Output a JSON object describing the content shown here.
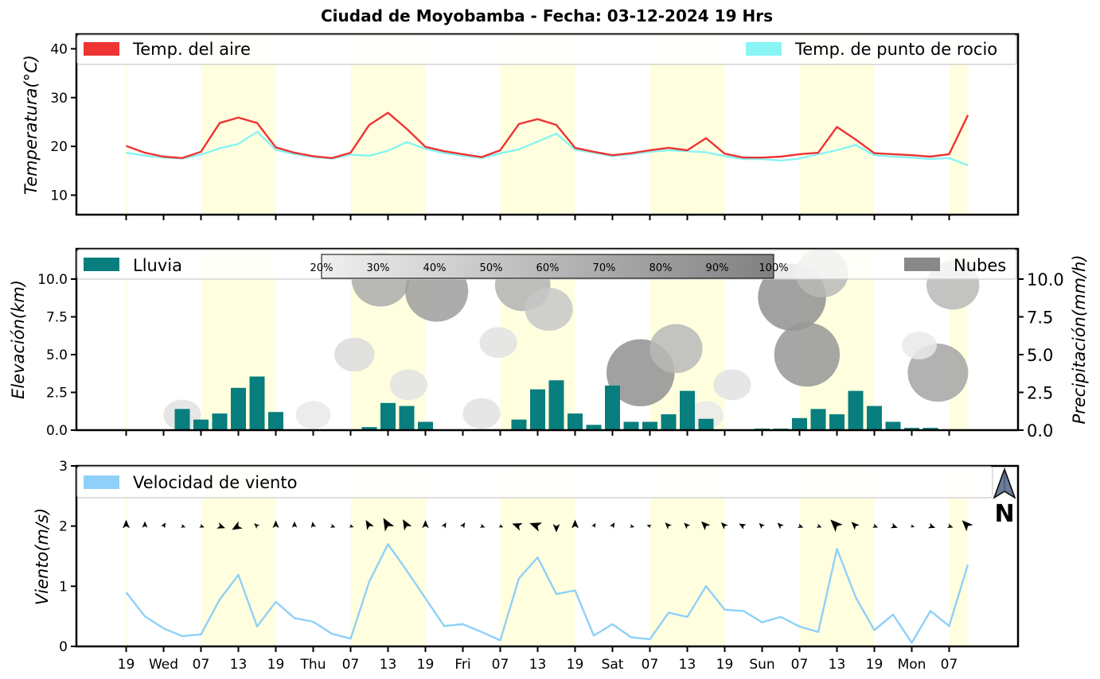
{
  "title": "Ciudad de Moyobamba   -   Fecha: 03-12-2024 19 Hrs",
  "x_ticks": [
    "19",
    "Wed",
    "07",
    "13",
    "19",
    "Thu",
    "07",
    "13",
    "19",
    "Fri",
    "07",
    "13",
    "19",
    "Sat",
    "07",
    "13",
    "19",
    "Sun",
    "07",
    "13",
    "19",
    "Mon",
    "07"
  ],
  "colors": {
    "air": "#ee3333",
    "dew": "#88f4f4",
    "rain": "#087e7e",
    "clouds": "#888888",
    "wind": "#8fd0f8",
    "daylight": "#ffffe0"
  },
  "compass_label": "N",
  "chart_data": [
    {
      "type": "line",
      "ylabel": "Temperatura(°C)",
      "ylim": [
        6,
        43
      ],
      "yticks": [
        "10",
        "20",
        "30",
        "40"
      ],
      "legend": {
        "air": "Temp. del aire",
        "dew": "Temp. de punto de rocio"
      },
      "x": "3-hour steps from Tue 19h (index 0) to Mon 10h (index 45)",
      "series": [
        {
          "name": "Temp. del aire",
          "values": [
            20.1,
            18.7,
            17.9,
            17.6,
            18.9,
            24.8,
            25.9,
            24.8,
            19.8,
            18.7,
            18.0,
            17.6,
            18.7,
            24.4,
            26.9,
            23.6,
            19.9,
            19.0,
            18.4,
            17.8,
            19.2,
            24.6,
            25.6,
            24.4,
            19.7,
            18.9,
            18.2,
            18.6,
            19.2,
            19.7,
            19.2,
            21.7,
            18.5,
            17.7,
            17.7,
            17.9,
            18.4,
            18.7,
            24.0,
            21.4,
            18.6,
            18.4,
            18.2,
            17.9,
            18.4,
            26.4
          ]
        },
        {
          "name": "Temp. de punto de rocio",
          "values": [
            18.7,
            18.1,
            17.7,
            17.5,
            18.3,
            19.6,
            20.5,
            23.0,
            19.3,
            18.4,
            17.8,
            17.5,
            18.3,
            18.1,
            19.1,
            20.9,
            19.5,
            18.6,
            18.1,
            17.6,
            18.6,
            19.4,
            21.0,
            22.6,
            19.3,
            18.7,
            18.0,
            18.4,
            18.9,
            19.2,
            19.0,
            18.8,
            18.0,
            17.4,
            17.4,
            17.1,
            17.5,
            18.4,
            19.2,
            20.3,
            18.2,
            17.9,
            17.7,
            17.4,
            17.6,
            16.1
          ]
        }
      ]
    },
    {
      "type": "bar",
      "ylabel": "Elevación(km)",
      "ylabel_right": "Precipitación(mm/h)",
      "ylim": [
        0,
        12
      ],
      "yticks": [
        "0.0",
        "2.5",
        "5.0",
        "7.5",
        "10.0"
      ],
      "legend": {
        "rain": "Lluvia",
        "clouds": "Nubes"
      },
      "colorbar_labels": [
        "20%",
        "30%",
        "40%",
        "50%",
        "60%",
        "70%",
        "80%",
        "90%",
        "100%"
      ],
      "rain_values": [
        0,
        0,
        0.05,
        1.4,
        0.7,
        1.1,
        2.8,
        3.55,
        1.2,
        0,
        0,
        0,
        0,
        0.2,
        1.8,
        1.6,
        0.55,
        0,
        0,
        0,
        0,
        0.7,
        2.7,
        3.3,
        1.1,
        0.35,
        2.95,
        0.55,
        0.55,
        1.05,
        2.6,
        0.75,
        0.05,
        0,
        0.1,
        0.1,
        0.8,
        1.4,
        1.05,
        2.6,
        1.6,
        0.55,
        0.15,
        0.15,
        0,
        0.05
      ],
      "clouds": [
        {
          "t": 13.6,
          "km": 10.0,
          "coverage": 70
        },
        {
          "t": 16.6,
          "km": 9.2,
          "coverage": 80
        },
        {
          "t": 21.2,
          "km": 9.6,
          "coverage": 65
        },
        {
          "t": 22.6,
          "km": 8.0,
          "coverage": 50
        },
        {
          "t": 27.5,
          "km": 3.8,
          "coverage": 90
        },
        {
          "t": 29.4,
          "km": 5.4,
          "coverage": 60
        },
        {
          "t": 35.6,
          "km": 8.8,
          "coverage": 90
        },
        {
          "t": 36.4,
          "km": 5.0,
          "coverage": 85
        },
        {
          "t": 37.2,
          "km": 10.4,
          "coverage": 60
        },
        {
          "t": 43.4,
          "km": 3.8,
          "coverage": 75
        },
        {
          "t": 44.2,
          "km": 9.6,
          "coverage": 60
        },
        {
          "t": 12.2,
          "km": 5.0,
          "coverage": 35
        },
        {
          "t": 19.9,
          "km": 5.8,
          "coverage": 30
        },
        {
          "t": 15.1,
          "km": 3.0,
          "coverage": 30
        },
        {
          "t": 32.4,
          "km": 3.0,
          "coverage": 30
        },
        {
          "t": 42.4,
          "km": 5.6,
          "coverage": 25
        },
        {
          "t": 3.0,
          "km": 1.0,
          "coverage": 30
        },
        {
          "t": 10.0,
          "km": 1.0,
          "coverage": 25
        },
        {
          "t": 19.0,
          "km": 1.1,
          "coverage": 30
        },
        {
          "t": 31.0,
          "km": 1.0,
          "coverage": 25
        }
      ]
    },
    {
      "type": "line",
      "ylabel": "Viento(m/s)",
      "ylim": [
        0,
        3
      ],
      "yticks": [
        "0",
        "1",
        "2",
        "3"
      ],
      "legend": {
        "wind": "Velocidad de viento"
      },
      "series": [
        {
          "name": "Velocidad de viento",
          "values": [
            0.9,
            0.5,
            0.3,
            0.17,
            0.2,
            0.78,
            1.19,
            0.33,
            0.74,
            0.47,
            0.41,
            0.21,
            0.13,
            1.08,
            1.7,
            1.26,
            0.8,
            0.34,
            0.37,
            0.24,
            0.1,
            1.13,
            1.48,
            0.87,
            0.93,
            0.18,
            0.37,
            0.15,
            0.12,
            0.56,
            0.49,
            1.0,
            0.61,
            0.59,
            0.4,
            0.49,
            0.33,
            0.24,
            1.62,
            0.82,
            0.27,
            0.53,
            0.06,
            0.59,
            0.34,
            1.36
          ]
        }
      ],
      "wind_dir_deg": [
        90,
        90,
        120,
        200,
        200,
        200,
        330,
        45,
        90,
        90,
        80,
        200,
        200,
        60,
        60,
        60,
        90,
        120,
        120,
        200,
        200,
        20,
        20,
        270,
        90,
        120,
        120,
        200,
        20,
        45,
        45,
        45,
        45,
        30,
        45,
        45,
        200,
        200,
        45,
        45,
        200,
        200,
        200,
        200,
        200,
        45
      ]
    }
  ]
}
